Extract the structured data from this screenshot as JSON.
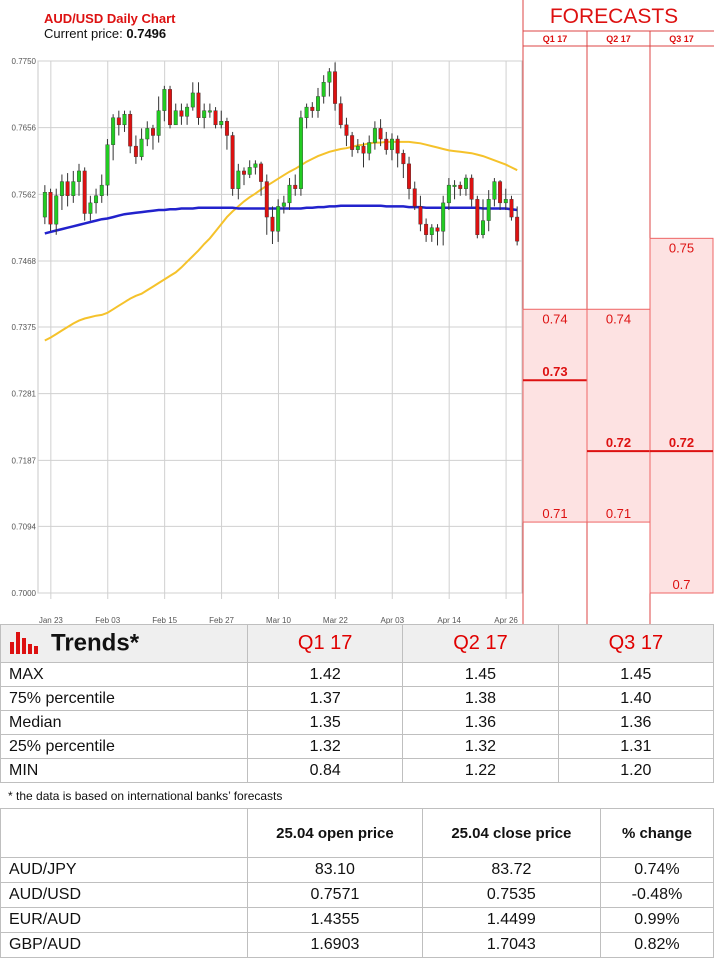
{
  "chart": {
    "title": "AUD/USD Daily Chart",
    "price_label": "Current price: ",
    "price_value": "0.7496"
  },
  "forecasts": {
    "title": "FORECASTS",
    "quarters": [
      "Q1 17",
      "Q2 17",
      "Q3 17"
    ],
    "columns": [
      {
        "high": "0.74",
        "median": "0.73",
        "low": "0.71",
        "high_val": 0.74,
        "median_val": 0.73,
        "low_val": 0.71
      },
      {
        "high": "0.74",
        "median": "0.72",
        "low": "0.71",
        "high_val": 0.74,
        "median_val": 0.72,
        "low_val": 0.71
      },
      {
        "high": "0.75",
        "median": "0.72",
        "low": "0.7",
        "high_val": 0.75,
        "median_val": 0.72,
        "low_val": 0.7
      }
    ]
  },
  "chart_data": {
    "type": "candlestick",
    "title": "AUD/USD Daily Chart",
    "ylim": [
      0.7,
      0.775
    ],
    "y_ticks": [
      "0.7750",
      "0.7656",
      "0.7562",
      "0.7468",
      "0.7375",
      "0.7281",
      "0.7187",
      "0.7094",
      "0.7000"
    ],
    "x_ticks": [
      "Jan 23",
      "Feb 03",
      "Feb 15",
      "Feb 27",
      "Mar 10",
      "Mar 22",
      "Apr 03",
      "Apr 14",
      "Apr 26"
    ],
    "candles": [
      [
        0.753,
        0.7565,
        0.752,
        0.7575
      ],
      [
        0.7565,
        0.752,
        0.751,
        0.757
      ],
      [
        0.752,
        0.756,
        0.7505,
        0.757
      ],
      [
        0.756,
        0.758,
        0.754,
        0.759
      ],
      [
        0.758,
        0.756,
        0.7545,
        0.7592
      ],
      [
        0.756,
        0.758,
        0.755,
        0.7595
      ],
      [
        0.758,
        0.7595,
        0.756,
        0.7605
      ],
      [
        0.7595,
        0.7535,
        0.7525,
        0.76
      ],
      [
        0.7535,
        0.755,
        0.7525,
        0.756
      ],
      [
        0.755,
        0.756,
        0.7535,
        0.757
      ],
      [
        0.756,
        0.7575,
        0.755,
        0.759
      ],
      [
        0.7575,
        0.7632,
        0.756,
        0.764
      ],
      [
        0.7632,
        0.767,
        0.761,
        0.7675
      ],
      [
        0.767,
        0.766,
        0.7645,
        0.768
      ],
      [
        0.766,
        0.7675,
        0.765,
        0.768
      ],
      [
        0.7675,
        0.763,
        0.762,
        0.768
      ],
      [
        0.763,
        0.7615,
        0.7605,
        0.7645
      ],
      [
        0.7615,
        0.764,
        0.761,
        0.7655
      ],
      [
        0.764,
        0.7655,
        0.763,
        0.7665
      ],
      [
        0.7655,
        0.7645,
        0.7625,
        0.766
      ],
      [
        0.7645,
        0.768,
        0.7635,
        0.77
      ],
      [
        0.768,
        0.771,
        0.7665,
        0.7715
      ],
      [
        0.771,
        0.766,
        0.7655,
        0.7715
      ],
      [
        0.766,
        0.768,
        0.766,
        0.769
      ],
      [
        0.768,
        0.7672,
        0.766,
        0.769
      ],
      [
        0.7672,
        0.7685,
        0.766,
        0.769
      ],
      [
        0.7685,
        0.7705,
        0.768,
        0.772
      ],
      [
        0.7705,
        0.767,
        0.766,
        0.772
      ],
      [
        0.767,
        0.768,
        0.7655,
        0.769
      ],
      [
        0.768,
        0.768,
        0.767,
        0.769
      ],
      [
        0.768,
        0.766,
        0.7655,
        0.7685
      ],
      [
        0.766,
        0.7665,
        0.7655,
        0.768
      ],
      [
        0.7665,
        0.7645,
        0.7625,
        0.767
      ],
      [
        0.7645,
        0.757,
        0.756,
        0.765
      ],
      [
        0.757,
        0.7595,
        0.7555,
        0.7605
      ],
      [
        0.7595,
        0.759,
        0.7575,
        0.76
      ],
      [
        0.759,
        0.76,
        0.7585,
        0.761
      ],
      [
        0.76,
        0.7605,
        0.759,
        0.761
      ],
      [
        0.7605,
        0.758,
        0.756,
        0.7608
      ],
      [
        0.758,
        0.753,
        0.7505,
        0.759
      ],
      [
        0.753,
        0.751,
        0.7492,
        0.7545
      ],
      [
        0.751,
        0.7545,
        0.7495,
        0.7555
      ],
      [
        0.7545,
        0.755,
        0.7535,
        0.756
      ],
      [
        0.755,
        0.7575,
        0.754,
        0.7585
      ],
      [
        0.7575,
        0.757,
        0.756,
        0.759
      ],
      [
        0.757,
        0.767,
        0.756,
        0.768
      ],
      [
        0.767,
        0.7685,
        0.7655,
        0.769
      ],
      [
        0.7685,
        0.768,
        0.767,
        0.7692
      ],
      [
        0.768,
        0.77,
        0.767,
        0.7712
      ],
      [
        0.77,
        0.772,
        0.769,
        0.773
      ],
      [
        0.772,
        0.7735,
        0.77,
        0.774
      ],
      [
        0.7735,
        0.769,
        0.768,
        0.7748
      ],
      [
        0.769,
        0.766,
        0.7655,
        0.77
      ],
      [
        0.766,
        0.7645,
        0.763,
        0.767
      ],
      [
        0.7645,
        0.7625,
        0.7615,
        0.765
      ],
      [
        0.7625,
        0.763,
        0.762,
        0.764
      ],
      [
        0.763,
        0.762,
        0.76,
        0.7635
      ],
      [
        0.762,
        0.7635,
        0.761,
        0.7645
      ],
      [
        0.7635,
        0.7655,
        0.7625,
        0.7665
      ],
      [
        0.7655,
        0.764,
        0.763,
        0.7668
      ],
      [
        0.764,
        0.7625,
        0.7618,
        0.765
      ],
      [
        0.7625,
        0.764,
        0.761,
        0.7648
      ],
      [
        0.764,
        0.762,
        0.76,
        0.7645
      ],
      [
        0.762,
        0.7605,
        0.7585,
        0.7625
      ],
      [
        0.7605,
        0.757,
        0.7555,
        0.7615
      ],
      [
        0.757,
        0.7545,
        0.754,
        0.758
      ],
      [
        0.7545,
        0.752,
        0.751,
        0.756
      ],
      [
        0.752,
        0.7505,
        0.7495,
        0.7528
      ],
      [
        0.7505,
        0.7515,
        0.7495,
        0.752
      ],
      [
        0.7515,
        0.751,
        0.749,
        0.752
      ],
      [
        0.751,
        0.755,
        0.749,
        0.756
      ],
      [
        0.755,
        0.7575,
        0.754,
        0.7585
      ],
      [
        0.7575,
        0.7575,
        0.7555,
        0.7582
      ],
      [
        0.7575,
        0.757,
        0.756,
        0.758
      ],
      [
        0.757,
        0.7585,
        0.756,
        0.759
      ],
      [
        0.7585,
        0.7555,
        0.7545,
        0.759
      ],
      [
        0.7555,
        0.7505,
        0.75,
        0.756
      ],
      [
        0.7505,
        0.7525,
        0.75,
        0.7555
      ],
      [
        0.7525,
        0.7555,
        0.751,
        0.7568
      ],
      [
        0.7555,
        0.758,
        0.7545,
        0.7585
      ],
      [
        0.758,
        0.755,
        0.754,
        0.7582
      ],
      [
        0.755,
        0.7555,
        0.754,
        0.757
      ],
      [
        0.7555,
        0.753,
        0.7525,
        0.756
      ],
      [
        0.753,
        0.7496,
        0.749,
        0.7545
      ]
    ],
    "ma_blue": [
      0.7507,
      0.7509,
      0.7511,
      0.7513,
      0.7515,
      0.7517,
      0.7519,
      0.7521,
      0.7523,
      0.7525,
      0.7527,
      0.7528,
      0.753,
      0.7532,
      0.7534,
      0.7535,
      0.7536,
      0.7537,
      0.7538,
      0.7539,
      0.754,
      0.754,
      0.7541,
      0.7541,
      0.7542,
      0.7542,
      0.7542,
      0.7543,
      0.7543,
      0.7543,
      0.7543,
      0.7543,
      0.7543,
      0.7543,
      0.7542,
      0.7542,
      0.7542,
      0.7542,
      0.7542,
      0.7542,
      0.7542,
      0.7542,
      0.7542,
      0.7542,
      0.7542,
      0.7542,
      0.7543,
      0.7543,
      0.7544,
      0.7544,
      0.7545,
      0.7545,
      0.7546,
      0.7546,
      0.7546,
      0.7546,
      0.7546,
      0.7546,
      0.7546,
      0.7546,
      0.7545,
      0.7545,
      0.7545,
      0.7545,
      0.7544,
      0.7544,
      0.7544,
      0.7543,
      0.7543,
      0.7543,
      0.7543,
      0.7543,
      0.7543,
      0.7543,
      0.7543,
      0.7543,
      0.7543,
      0.7542,
      0.7542,
      0.7542,
      0.7542,
      0.7542,
      0.7541,
      0.754
    ],
    "ma_yellow": [
      0.7356,
      0.736,
      0.7365,
      0.737,
      0.7375,
      0.738,
      0.7384,
      0.7387,
      0.7389,
      0.7391,
      0.7392,
      0.7395,
      0.74,
      0.7405,
      0.741,
      0.7415,
      0.7419,
      0.7422,
      0.7427,
      0.7432,
      0.7437,
      0.7442,
      0.7447,
      0.7452,
      0.7459,
      0.7467,
      0.7475,
      0.7483,
      0.7492,
      0.75,
      0.751,
      0.752,
      0.753,
      0.7538,
      0.7545,
      0.7552,
      0.7558,
      0.7563,
      0.7569,
      0.7574,
      0.7579,
      0.7584,
      0.7589,
      0.7594,
      0.7598,
      0.7603,
      0.7608,
      0.7612,
      0.7616,
      0.7619,
      0.7622,
      0.7624,
      0.7626,
      0.7627,
      0.7629,
      0.7631,
      0.7632,
      0.7634,
      0.7635,
      0.7635,
      0.7636,
      0.7636,
      0.7636,
      0.7636,
      0.7636,
      0.7635,
      0.7634,
      0.7632,
      0.763,
      0.7628,
      0.7626,
      0.7624,
      0.7623,
      0.7622,
      0.7621,
      0.762,
      0.7618,
      0.7616,
      0.7613,
      0.761,
      0.7607,
      0.7604,
      0.76,
      0.7596
    ],
    "colors": {
      "up": "#22cc22",
      "down": "#dd1111",
      "ma_blue": "#2222cc",
      "ma_yellow": "#f5c22b",
      "grid": "#d0d0d0"
    }
  },
  "trends": {
    "title": "Trends*",
    "quarters": [
      "Q1 17",
      "Q2 17",
      "Q3 17"
    ],
    "rows": [
      {
        "label": "MAX",
        "values": [
          "1.42",
          "1.45",
          "1.45"
        ]
      },
      {
        "label": "75% percentile",
        "values": [
          "1.37",
          "1.38",
          "1.40"
        ]
      },
      {
        "label": "Median",
        "values": [
          "1.35",
          "1.36",
          "1.36"
        ]
      },
      {
        "label": "25% percentile",
        "values": [
          "1.32",
          "1.32",
          "1.31"
        ]
      },
      {
        "label": "MIN",
        "values": [
          "0.84",
          "1.22",
          "1.20"
        ]
      }
    ],
    "footnote": "* the data is based on international banks’ forecasts"
  },
  "prices": {
    "headers": [
      "",
      "25.04 open price",
      "25.04 close price",
      "% change"
    ],
    "rows": [
      {
        "pair": "AUD/JPY",
        "open": "83.10",
        "close": "83.72",
        "change": "0.74%",
        "dir": "pos"
      },
      {
        "pair": "AUD/USD",
        "open": "0.7571",
        "close": "0.7535",
        "change": "-0.48%",
        "dir": "neg"
      },
      {
        "pair": "EUR/AUD",
        "open": "1.4355",
        "close": "1.4499",
        "change": "0.99%",
        "dir": "pos"
      },
      {
        "pair": "GBP/AUD",
        "open": "1.6903",
        "close": "1.7043",
        "change": "0.82%",
        "dir": "pos"
      }
    ]
  }
}
